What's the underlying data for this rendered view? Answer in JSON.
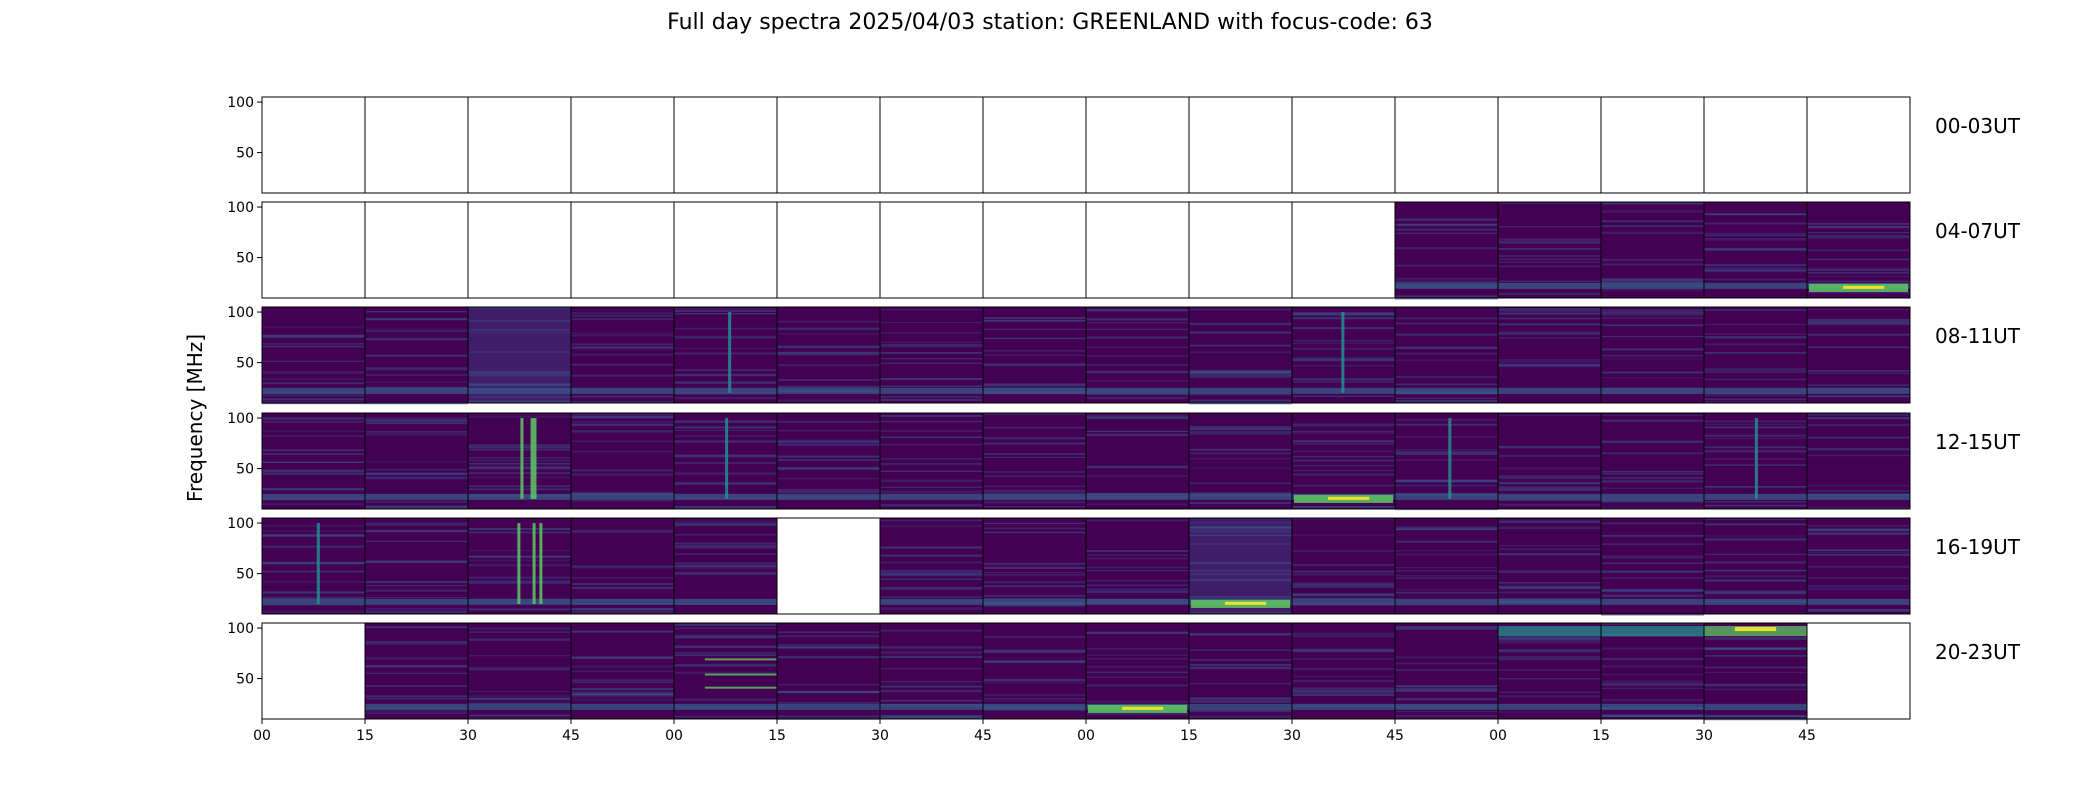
{
  "chart_data": {
    "type": "heatmap",
    "title": "Full day spectra 2025/04/03 station: GREENLAND with focus-code: 63",
    "ylabel": "Frequency [MHz]",
    "y_ticks": [
      50,
      100
    ],
    "y_range_mhz": [
      10,
      105
    ],
    "x_ticks": [
      "00",
      "15",
      "30",
      "45",
      "00",
      "15",
      "30",
      "45",
      "00",
      "15",
      "30",
      "45",
      "00",
      "15",
      "30",
      "45"
    ],
    "colormap": "viridis",
    "colors": {
      "low": "#440154",
      "mid": "#3b528b",
      "teal": "#21918c",
      "green": "#5ec962",
      "high": "#fde725"
    },
    "rows": [
      {
        "label": "00-03UT",
        "panels": [
          "empty",
          "empty",
          "empty",
          "empty",
          "empty",
          "empty",
          "empty",
          "empty",
          "empty",
          "empty",
          "empty",
          "empty",
          "empty",
          "empty",
          "empty",
          "empty"
        ]
      },
      {
        "label": "04-07UT",
        "panels": [
          "empty",
          "empty",
          "empty",
          "empty",
          "empty",
          "empty",
          "empty",
          "empty",
          "empty",
          "empty",
          "empty",
          "data",
          "data",
          "data",
          "data",
          "data-bright-low"
        ]
      },
      {
        "label": "08-11UT",
        "panels": [
          "data",
          "data",
          "data-diffuse",
          "data",
          "data-burst",
          "data",
          "data",
          "data",
          "data",
          "data",
          "data-burst",
          "data",
          "data",
          "data",
          "data",
          "data"
        ]
      },
      {
        "label": "12-15UT",
        "panels": [
          "data",
          "data",
          "data-strong-burst",
          "data",
          "data-burst",
          "data",
          "data",
          "data",
          "data",
          "data",
          "data-bright-low",
          "data-burst",
          "data",
          "data",
          "data-burst",
          "data"
        ]
      },
      {
        "label": "16-19UT",
        "panels": [
          "data-burst",
          "data",
          "data-strong-burst",
          "data",
          "data",
          "empty",
          "data",
          "data",
          "data",
          "data-diffuse-bright",
          "data",
          "data",
          "data",
          "data",
          "data",
          "data"
        ]
      },
      {
        "label": "20-23UT",
        "panels": [
          "empty",
          "data",
          "data",
          "data",
          "data-lines",
          "data",
          "data",
          "data",
          "data-bright-low",
          "data",
          "data",
          "data",
          "data-top",
          "data-top",
          "data-bright-top",
          "empty"
        ]
      }
    ]
  }
}
